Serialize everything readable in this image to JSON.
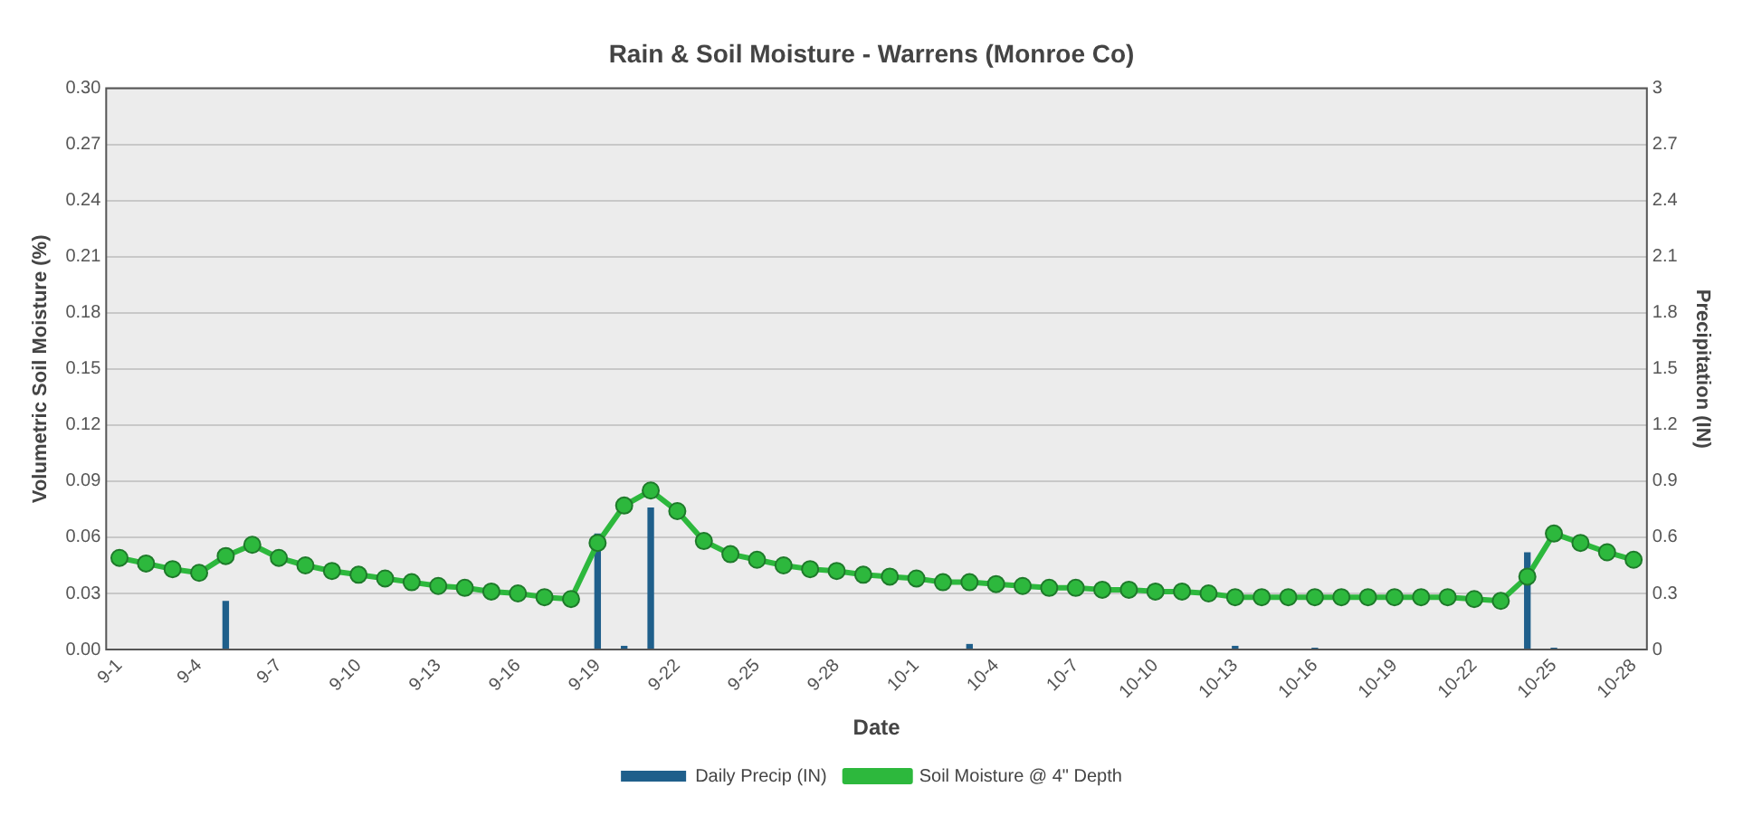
{
  "chart_data": {
    "type": "line",
    "title": "Rain & Soil Moisture - Warrens (Monroe Co)",
    "xlabel": "Date",
    "ylabel": "Volumetric Soil Moisture (%)",
    "y2label": "Precipitation (IN)",
    "categories": [
      "9-1",
      null,
      null,
      "9-4",
      null,
      null,
      "9-7",
      null,
      null,
      "9-10",
      null,
      null,
      "9-13",
      null,
      null,
      "9-16",
      null,
      null,
      "9-19",
      null,
      null,
      "9-22",
      null,
      null,
      "9-25",
      null,
      null,
      "9-28",
      null,
      null,
      "10-1",
      null,
      null,
      "10-4",
      null,
      null,
      "10-7",
      null,
      null,
      "10-10",
      null,
      null,
      "10-13",
      null,
      null,
      "10-16",
      null,
      null,
      "10-19",
      null,
      null,
      "10-22",
      null,
      null,
      "10-25",
      null,
      null,
      "10-28"
    ],
    "series": [
      {
        "name": "Daily Precip (IN)",
        "type": "bar",
        "axis": "y2",
        "color": "#1f5f8b",
        "values": [
          0,
          0,
          0,
          0,
          0.26,
          0,
          0,
          0,
          0,
          0,
          0,
          0,
          0,
          0,
          0,
          0,
          0,
          0,
          0.62,
          0.02,
          0.76,
          0,
          0,
          0,
          0,
          0,
          0,
          0,
          0,
          0,
          0,
          0,
          0.03,
          0,
          0,
          0,
          0,
          0,
          0,
          0,
          0,
          0,
          0.02,
          0,
          0,
          0.01,
          0,
          0,
          0,
          0,
          0,
          0,
          0,
          0.52,
          0.01,
          0,
          0,
          0
        ]
      },
      {
        "name": "Soil Moisture @ 4\" Depth",
        "color": "#2db83d",
        "marker": "circle",
        "values": [
          0.049,
          0.046,
          0.043,
          0.041,
          0.05,
          0.056,
          0.049,
          0.045,
          0.042,
          0.04,
          0.038,
          0.036,
          0.034,
          0.033,
          0.031,
          0.03,
          0.028,
          0.027,
          0.057,
          0.077,
          0.085,
          0.074,
          0.058,
          0.051,
          0.048,
          0.045,
          0.043,
          0.042,
          0.04,
          0.039,
          0.038,
          0.036,
          0.036,
          0.035,
          0.034,
          0.033,
          0.033,
          0.032,
          0.032,
          0.031,
          0.031,
          0.03,
          0.028,
          0.028,
          0.028,
          0.028,
          0.028,
          0.028,
          0.028,
          0.028,
          0.028,
          0.027,
          0.026,
          0.039,
          0.062,
          0.057,
          0.052,
          0.048
        ]
      }
    ],
    "ylim": [
      0,
      0.3
    ],
    "yticks": [
      {
        "value": 0,
        "label": "0.00"
      },
      {
        "value": 0.03,
        "label": "0.03"
      },
      {
        "value": 0.06,
        "label": "0.06"
      },
      {
        "value": 0.09,
        "label": "0.09"
      },
      {
        "value": 0.12,
        "label": "0.12"
      },
      {
        "value": 0.15,
        "label": "0.15"
      },
      {
        "value": 0.18,
        "label": "0.18"
      },
      {
        "value": 0.21,
        "label": "0.21"
      },
      {
        "value": 0.24,
        "label": "0.24"
      },
      {
        "value": 0.27,
        "label": "0.27"
      },
      {
        "value": 0.3,
        "label": "0.30"
      }
    ],
    "y2lim": [
      0,
      3
    ],
    "y2ticks": [
      0,
      0.3,
      0.6,
      0.9,
      1.2,
      1.5,
      1.8,
      2.1,
      2.4,
      2.7,
      3
    ],
    "grid": "y",
    "legend": "bottom"
  }
}
